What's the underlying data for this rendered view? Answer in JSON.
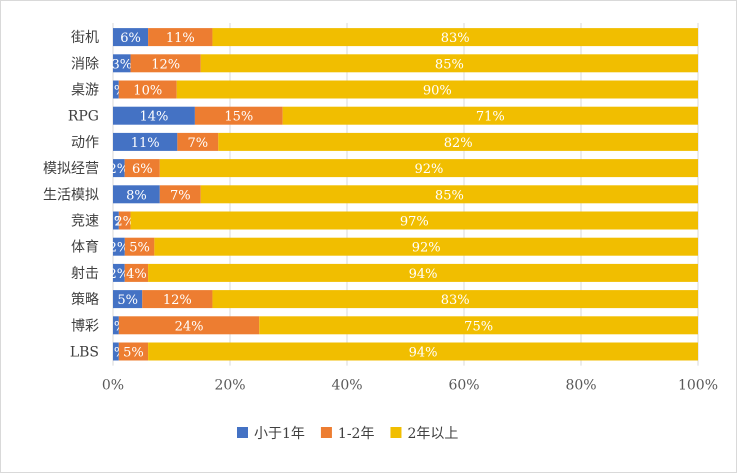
{
  "chart_data": {
    "type": "bar",
    "orientation": "horizontal",
    "stacked": "percent",
    "categories": [
      "街机",
      "消除",
      "桌游",
      "RPG",
      "动作",
      "模拟经营",
      "生活模拟",
      "竞速",
      "体育",
      "射击",
      "策略",
      "博彩",
      "LBS"
    ],
    "series": [
      {
        "name": "小于1年",
        "color": "#4472C4",
        "values": [
          6,
          3,
          1,
          14,
          11,
          2,
          8,
          1,
          2,
          2,
          5,
          1,
          1
        ]
      },
      {
        "name": "1-2年",
        "color": "#ED7D31",
        "values": [
          11,
          12,
          10,
          15,
          7,
          6,
          7,
          2,
          5,
          4,
          12,
          24,
          5
        ]
      },
      {
        "name": "2年以上",
        "color": "#F1BE00",
        "values": [
          83,
          85,
          90,
          71,
          82,
          92,
          85,
          97,
          92,
          94,
          83,
          75,
          94
        ]
      }
    ],
    "xlim": [
      0,
      100
    ],
    "xticks": [
      "0%",
      "20%",
      "40%",
      "60%",
      "80%",
      "100%"
    ],
    "grid": true,
    "legend_position": "bottom"
  }
}
